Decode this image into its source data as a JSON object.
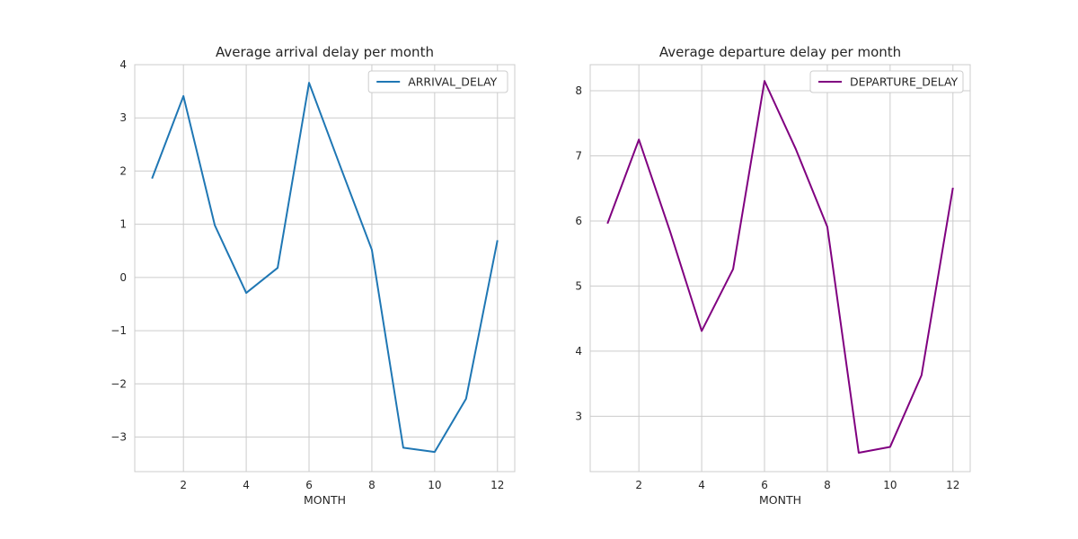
{
  "chart_data": [
    {
      "type": "line",
      "title": "Average arrival delay per month",
      "xlabel": "MONTH",
      "ylabel": "",
      "x": [
        1,
        2,
        3,
        4,
        5,
        6,
        7,
        8,
        9,
        10,
        11,
        12
      ],
      "xlim": [
        0.45,
        12.55
      ],
      "ylim": [
        -3.65,
        4.0
      ],
      "xticks": [
        2,
        4,
        6,
        8,
        10,
        12
      ],
      "yticks": [
        -3,
        -2,
        -1,
        0,
        1,
        2,
        3,
        4
      ],
      "grid": true,
      "legend_position": "top-right",
      "series": [
        {
          "name": "ARRIVAL_DELAY",
          "color": "#1f77b4",
          "values": [
            1.86,
            3.41,
            0.98,
            -0.29,
            0.18,
            3.66,
            2.08,
            0.52,
            -3.2,
            -3.28,
            -2.28,
            0.7
          ]
        }
      ]
    },
    {
      "type": "line",
      "title": "Average departure delay per month",
      "xlabel": "MONTH",
      "ylabel": "",
      "x": [
        1,
        2,
        3,
        4,
        5,
        6,
        7,
        8,
        9,
        10,
        11,
        12
      ],
      "xlim": [
        0.45,
        12.55
      ],
      "ylim": [
        2.15,
        8.4
      ],
      "xticks": [
        2,
        4,
        6,
        8,
        10,
        12
      ],
      "yticks": [
        3,
        4,
        5,
        6,
        7,
        8
      ],
      "grid": true,
      "legend_position": "top-right",
      "series": [
        {
          "name": "DEPARTURE_DELAY",
          "color": "#800080",
          "values": [
            5.96,
            7.25,
            5.83,
            4.31,
            5.26,
            8.15,
            7.1,
            5.91,
            2.44,
            2.53,
            3.63,
            6.51
          ]
        }
      ]
    }
  ]
}
